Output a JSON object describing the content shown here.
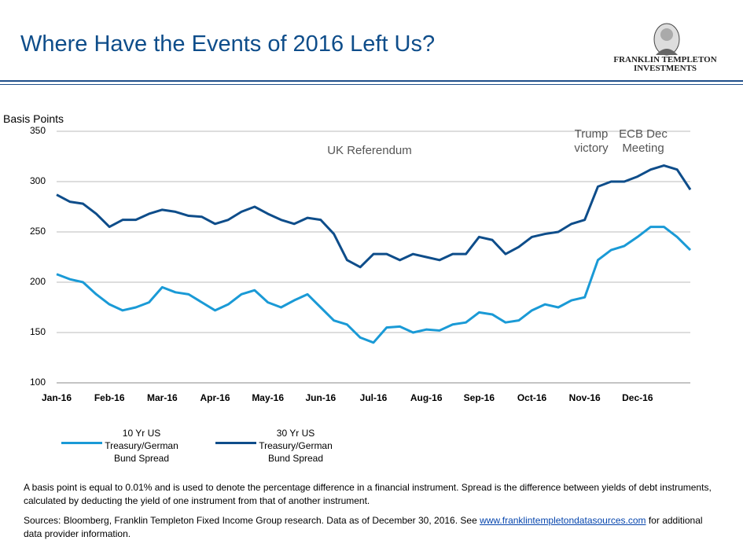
{
  "header": {
    "title": "Where Have the Events of 2016 Left Us?",
    "logo_line1": "FRANKLIN TEMPLETON",
    "logo_line2": "INVESTMENTS"
  },
  "chart_data": {
    "type": "line",
    "ylabel": "Basis Points",
    "categories": [
      "Jan-16",
      null,
      null,
      null,
      "Feb-16",
      null,
      null,
      null,
      "Mar-16",
      null,
      null,
      null,
      "Apr-16",
      null,
      null,
      null,
      "May-16",
      null,
      null,
      null,
      "Jun-16",
      null,
      null,
      null,
      "Jul-16",
      null,
      null,
      null,
      "Aug-16",
      null,
      null,
      null,
      "Sep-16",
      null,
      null,
      null,
      "Oct-16",
      null,
      null,
      null,
      "Nov-16",
      null,
      null,
      null,
      "Dec-16",
      null,
      null,
      null,
      null
    ],
    "series": [
      {
        "name": "10 Yr US Treasury/German Bund Spread",
        "color": "#1a9ad6",
        "values": [
          208,
          203,
          200,
          188,
          178,
          172,
          175,
          180,
          195,
          190,
          188,
          180,
          172,
          178,
          188,
          192,
          180,
          175,
          182,
          188,
          175,
          162,
          158,
          145,
          140,
          155,
          156,
          150,
          153,
          152,
          158,
          160,
          170,
          168,
          160,
          162,
          172,
          178,
          175,
          182,
          185,
          222,
          232,
          236,
          245,
          255,
          255,
          245,
          232
        ]
      },
      {
        "name": "30 Yr US Treasury/German Bund Spread",
        "color": "#0e4d8a",
        "values": [
          287,
          280,
          278,
          268,
          255,
          262,
          262,
          268,
          272,
          270,
          266,
          265,
          258,
          262,
          270,
          275,
          268,
          262,
          258,
          264,
          262,
          248,
          222,
          215,
          228,
          228,
          222,
          228,
          225,
          222,
          228,
          228,
          245,
          242,
          228,
          235,
          245,
          248,
          250,
          258,
          262,
          295,
          300,
          300,
          305,
          312,
          316,
          312,
          292
        ]
      }
    ],
    "ylim": [
      100,
      350
    ],
    "yticks": [
      100,
      150,
      200,
      250,
      300,
      350
    ],
    "grid": true,
    "annotations": [
      "UK Referendum",
      "Trump victory",
      "ECB Dec Meeting"
    ]
  },
  "footnotes": {
    "definition": "A basis point is equal to 0.01% and is used to denote the percentage difference in a financial instrument.  Spread is the difference between yields of  debt instruments, calculated by deducting the yield of one instrument from that of another instrument.",
    "sources": "Sources: Bloomberg, Franklin Templeton Fixed Income Group research. Data as of December 30, 2016. See ",
    "link": "www.franklintempletondatasources.com",
    "sources_end": " for additional data provider information."
  }
}
